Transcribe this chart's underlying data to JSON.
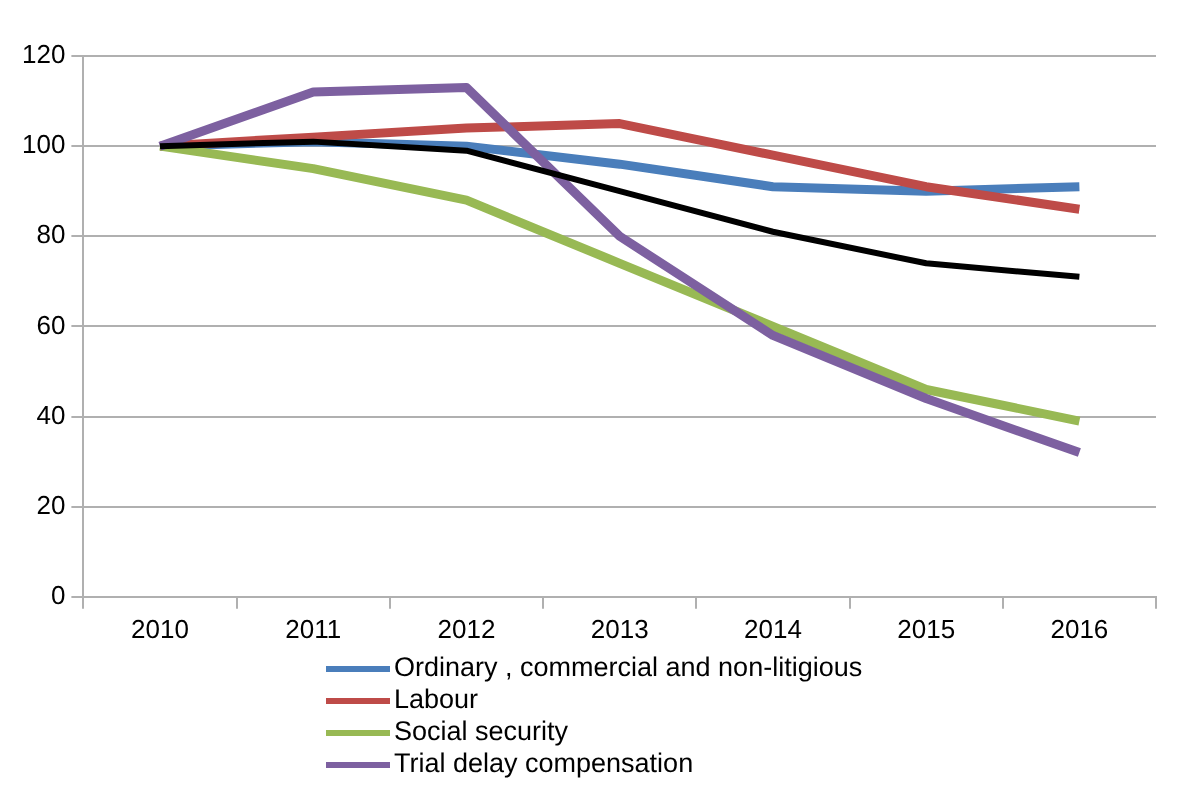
{
  "chart_data": {
    "type": "line",
    "categories": [
      "2010",
      "2011",
      "2012",
      "2013",
      "2014",
      "2015",
      "2016"
    ],
    "series": [
      {
        "name": "Ordinary , commercial and non-litigious",
        "color": "#4a7ebb",
        "values": [
          100,
          101,
          100,
          96,
          91,
          90,
          91
        ]
      },
      {
        "name": "Labour",
        "color": "#be4b48",
        "values": [
          100,
          102,
          104,
          105,
          98,
          91,
          86
        ]
      },
      {
        "name": "Social security",
        "color": "#98b954",
        "values": [
          100,
          95,
          88,
          74,
          60,
          46,
          39
        ]
      },
      {
        "name": "Trial delay compensation",
        "color": "#7d60a0",
        "values": [
          100,
          112,
          113,
          80,
          58,
          44,
          32
        ]
      },
      {
        "color": "#000000",
        "values": [
          100,
          101,
          99,
          90,
          81,
          74,
          71
        ]
      }
    ],
    "ylim": [
      0,
      120
    ],
    "yticks": [
      0,
      20,
      40,
      60,
      80,
      100,
      120
    ],
    "grid": "y",
    "legend": "bottom",
    "marker": "none",
    "line_style": "solid"
  }
}
